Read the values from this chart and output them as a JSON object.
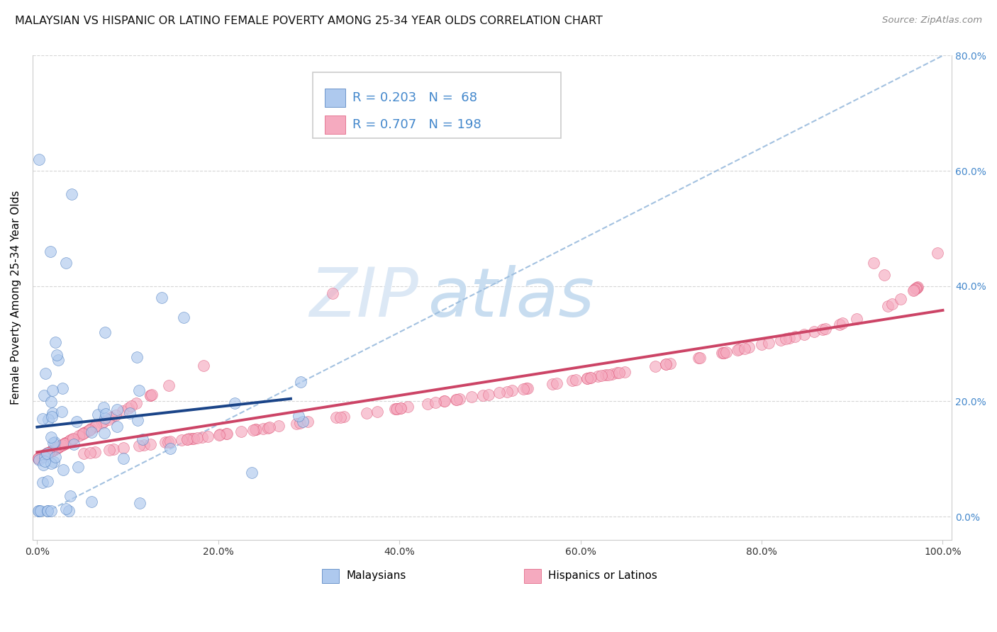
{
  "title": "MALAYSIAN VS HISPANIC OR LATINO FEMALE POVERTY AMONG 25-34 YEAR OLDS CORRELATION CHART",
  "source": "Source: ZipAtlas.com",
  "ylabel": "Female Poverty Among 25-34 Year Olds",
  "legend_labels": [
    "Malaysians",
    "Hispanics or Latinos"
  ],
  "r1": 0.203,
  "n1": 68,
  "r2": 0.707,
  "n2": 198,
  "blue_fill": "#aec9ee",
  "blue_edge": "#4477bb",
  "pink_fill": "#f5aabf",
  "pink_edge": "#dd5577",
  "blue_line": "#1a4488",
  "pink_line": "#cc4466",
  "dashed_color": "#99bbdd",
  "grid_color": "#cccccc",
  "right_tick_color": "#4488cc",
  "title_fontsize": 11.5,
  "source_fontsize": 9.5,
  "tick_fontsize": 10,
  "legend_fontsize": 13,
  "ylabel_fontsize": 11,
  "watermark_zip_color": "#dce8f5",
  "watermark_atlas_color": "#c8ddf0",
  "xlim": [
    -0.005,
    1.01
  ],
  "ylim": [
    -0.04,
    0.72
  ],
  "x_ticks": [
    0.0,
    0.2,
    0.4,
    0.6,
    0.8,
    1.0
  ],
  "x_tick_labels": [
    "0.0%",
    "20.0%",
    "40.0%",
    "60.0%",
    "80.0%",
    "100.0%"
  ],
  "y_ticks": [
    0.0,
    0.2,
    0.4,
    0.6,
    0.8
  ],
  "y_tick_labels": [
    "0.0%",
    "20.0%",
    "40.0%",
    "60.0%",
    "80.0%"
  ]
}
